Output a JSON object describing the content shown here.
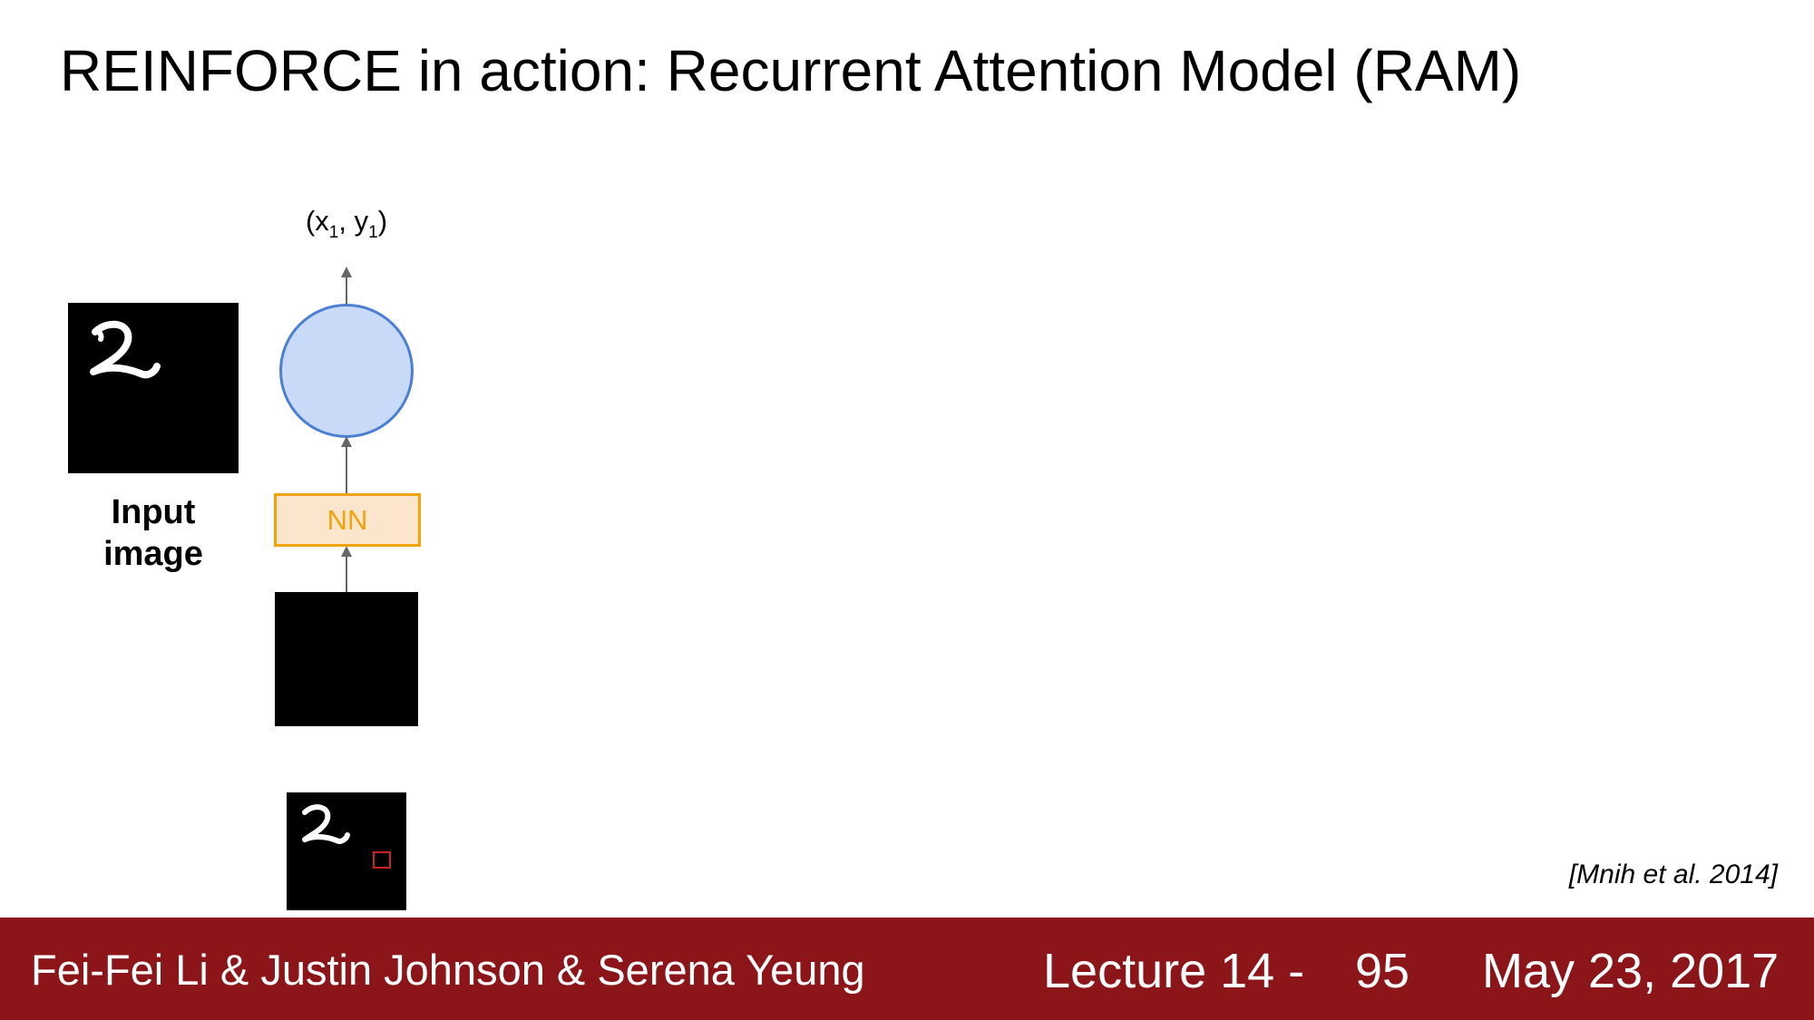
{
  "slide": {
    "title": "REINFORCE in action: Recurrent Attention Model (RAM)",
    "citation": "[Mnih et al. 2014]"
  },
  "diagram": {
    "output": {
      "base": "(x",
      "sub1": "1",
      "mid": ", y",
      "sub2": "1",
      "end": ")"
    },
    "input_label_line1": "Input",
    "input_label_line2": "image",
    "nn_label": "NN",
    "digit": "2"
  },
  "footer": {
    "authors": "Fei-Fei Li & Justin Johnson & Serena Yeung",
    "lecture": "Lecture 14 -",
    "page": "95",
    "date": "May 23, 2017"
  },
  "colors": {
    "footer_bg": "#8b1519",
    "rnn_fill": "#c9daf8",
    "rnn_stroke": "#4a7fd4",
    "nn_fill": "#fce5cd",
    "nn_stroke": "#f0a30a",
    "glimpse_marker": "#cc2222"
  }
}
